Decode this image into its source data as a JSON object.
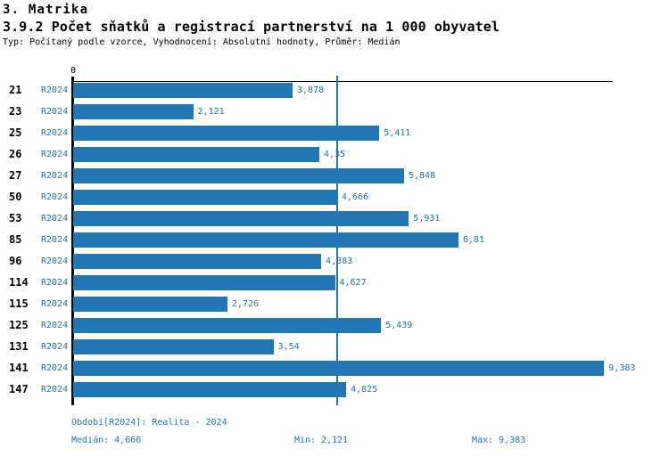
{
  "colors": {
    "accent": "#2276b4",
    "bar": "#2276b4",
    "median_line": "#2276b4",
    "text": "#000000",
    "background": "#ffffff"
  },
  "header": {
    "section": "3. Matrika",
    "title": "3.9.2 Počet sňatků a registrací partnerství na 1 000 obyvatel",
    "meta": "Typ: Počítaný podle vzorce, Vyhodnocení: Absolutní hodnoty, Průměr: Medián"
  },
  "axis": {
    "zero_label": "0"
  },
  "rows": [
    {
      "id": "21",
      "period": "R2024",
      "value": 3.878,
      "label": "3,878"
    },
    {
      "id": "23",
      "period": "R2024",
      "value": 2.121,
      "label": "2,121"
    },
    {
      "id": "25",
      "period": "R2024",
      "value": 5.411,
      "label": "5,411"
    },
    {
      "id": "26",
      "period": "R2024",
      "value": 4.35,
      "label": "4,35"
    },
    {
      "id": "27",
      "period": "R2024",
      "value": 5.848,
      "label": "5,848"
    },
    {
      "id": "50",
      "period": "R2024",
      "value": 4.666,
      "label": "4,666"
    },
    {
      "id": "53",
      "period": "R2024",
      "value": 5.931,
      "label": "5,931"
    },
    {
      "id": "85",
      "period": "R2024",
      "value": 6.81,
      "label": "6,81"
    },
    {
      "id": "96",
      "period": "R2024",
      "value": 4.383,
      "label": "4,383"
    },
    {
      "id": "114",
      "period": "R2024",
      "value": 4.627,
      "label": "4,627"
    },
    {
      "id": "115",
      "period": "R2024",
      "value": 2.726,
      "label": "2,726"
    },
    {
      "id": "125",
      "period": "R2024",
      "value": 5.439,
      "label": "5,439"
    },
    {
      "id": "131",
      "period": "R2024",
      "value": 3.54,
      "label": "3,54"
    },
    {
      "id": "141",
      "period": "R2024",
      "value": 9.383,
      "label": "9,383"
    },
    {
      "id": "147",
      "period": "R2024",
      "value": 4.825,
      "label": "4,825"
    }
  ],
  "footer": {
    "period_line": "Období[R2024]: Realita - 2024",
    "median": "Medián: 4,666",
    "min": "Min: 2,121",
    "max": "Max: 9,383"
  },
  "chart_data": {
    "type": "bar",
    "orientation": "horizontal",
    "title": "3.9.2 Počet sňatků a registrací partnerství na 1 000 obyvatel",
    "subtitle": "Typ: Počítaný podle vzorce, Vyhodnocení: Absolutní hodnoty, Průměr: Medián",
    "categories": [
      "21",
      "23",
      "25",
      "26",
      "27",
      "50",
      "53",
      "85",
      "96",
      "114",
      "115",
      "125",
      "131",
      "141",
      "147"
    ],
    "series": [
      {
        "name": "R2024",
        "values": [
          3.878,
          2.121,
          5.411,
          4.35,
          5.848,
          4.666,
          5.931,
          6.81,
          4.383,
          4.627,
          2.726,
          5.439,
          3.54,
          9.383,
          4.825
        ]
      }
    ],
    "value_labels": [
      "3,878",
      "2,121",
      "5,411",
      "4,35",
      "5,848",
      "4,666",
      "5,931",
      "6,81",
      "4,383",
      "4,627",
      "2,726",
      "5,439",
      "3,54",
      "9,383",
      "4,825"
    ],
    "xlabel": "",
    "ylabel": "",
    "xlim": [
      0,
      9.5
    ],
    "grid": false,
    "legend_position": "none",
    "median": 4.666,
    "min": 2.121,
    "max": 9.383
  }
}
